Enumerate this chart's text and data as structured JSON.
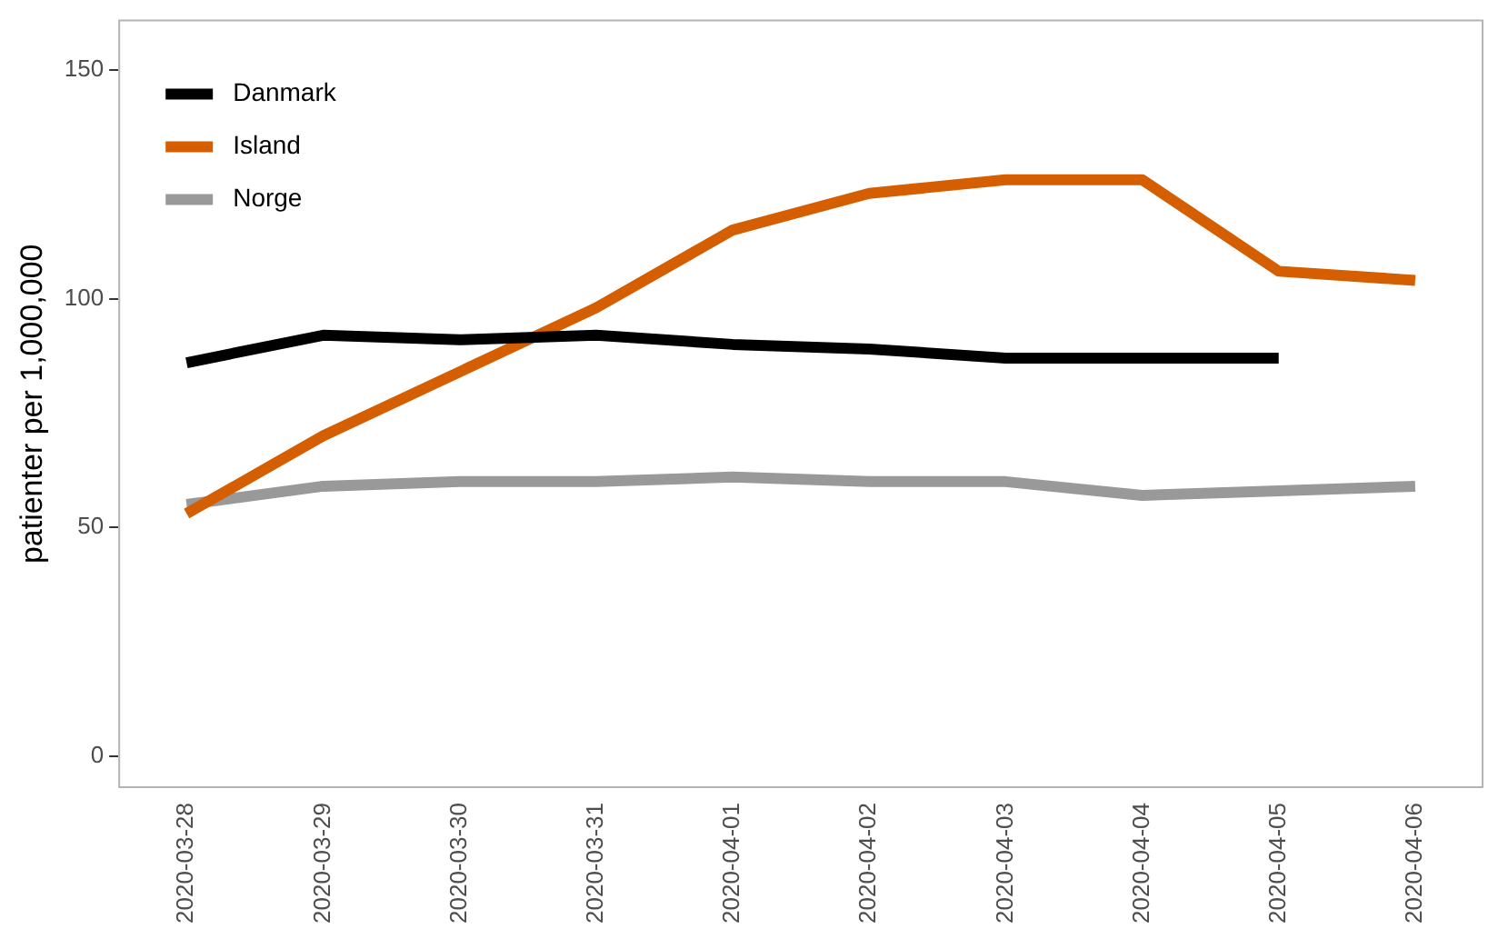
{
  "chart_data": {
    "type": "line",
    "ylabel": "patienter per 1,000,000",
    "categories": [
      "2020-03-28",
      "2020-03-29",
      "2020-03-30",
      "2020-03-31",
      "2020-04-01",
      "2020-04-02",
      "2020-04-03",
      "2020-04-04",
      "2020-04-05",
      "2020-04-06"
    ],
    "series": [
      {
        "name": "Danmark",
        "color": "#000000",
        "values": [
          86,
          92,
          91,
          92,
          90,
          89,
          87,
          87,
          87,
          null
        ]
      },
      {
        "name": "Island",
        "color": "#d55e00",
        "values": [
          53,
          70,
          84,
          98,
          115,
          123,
          126,
          126,
          106,
          104
        ]
      },
      {
        "name": "Norge",
        "color": "#999999",
        "values": [
          55,
          59,
          60,
          60,
          61,
          60,
          60,
          57,
          58,
          59
        ]
      }
    ],
    "ylim": [
      -7,
      161
    ],
    "yticks": [
      0,
      50,
      100,
      150
    ],
    "grid": false,
    "legend": "top left",
    "marker": "none",
    "line_style": "solid"
  }
}
